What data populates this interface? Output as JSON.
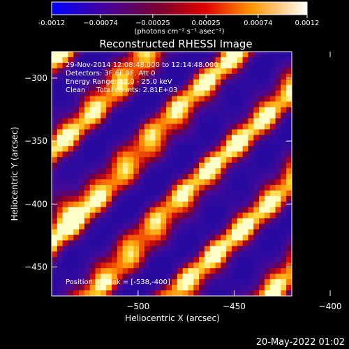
{
  "chart_data": {
    "type": "heatmap",
    "title": "Reconstructed RHESSI Image",
    "xlabel": "Heliocentric X (arcsec)",
    "ylabel": "Heliocentric Y (arcsec)",
    "xlim": [
      -545,
      -420
    ],
    "ylim": [
      -473,
      -279
    ],
    "x_ticks": [
      {
        "value": -500,
        "label": "−500"
      },
      {
        "value": -450,
        "label": "−450"
      },
      {
        "value": -400,
        "label": "−400"
      }
    ],
    "y_ticks": [
      {
        "value": -300,
        "label": "−300"
      },
      {
        "value": -350,
        "label": "−350"
      },
      {
        "value": -400,
        "label": "−400"
      },
      {
        "value": -450,
        "label": "−450"
      }
    ],
    "annotations": [
      "29-Nov-2014 12:08:48.000 to 12:14:48.000",
      "Detectors: 3F 6F 9F, Att 0",
      "Energy Range: 12.0 - 25.0 keV",
      "Clean     Total counts: 2.81E+03"
    ],
    "peak_label": "Position of Peak = [-538,-400]",
    "peak": {
      "x": -538,
      "y": -400
    },
    "colorbar": {
      "range": [
        -0.0012,
        0.0012
      ],
      "tick_labels": [
        "-0.0012",
        "−0.00074",
        "−0.00025",
        "0.00025",
        "0.00074",
        "0.0012"
      ],
      "tick_values": [
        -0.0012,
        -0.00074,
        -0.00025,
        0.00025,
        0.00074,
        0.0012
      ],
      "unit": "(photons cm⁻² s⁻¹ asec⁻²)"
    },
    "band_orientation": "diagonal stripes running from upper-left to lower-right",
    "grid": false,
    "legend": "none"
  },
  "footer": {
    "date": "20-May-2022 01:02"
  }
}
